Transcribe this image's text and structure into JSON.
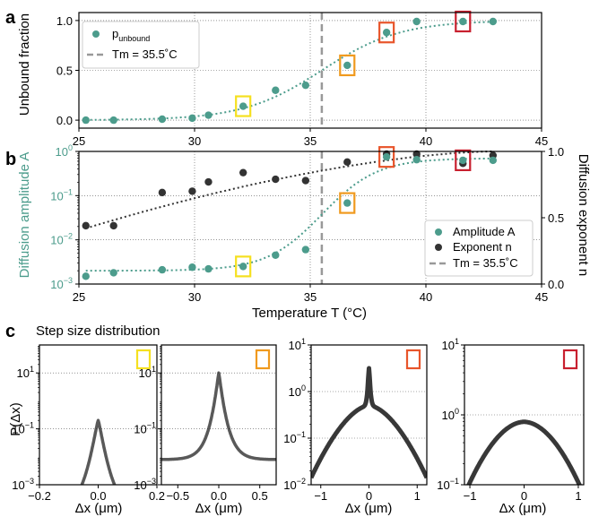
{
  "colors": {
    "teal": "#4c9c8c",
    "black": "#333333",
    "tm_line": "#999999",
    "grid": "#555555",
    "yellow": "#f5e020",
    "orange": "#f09a1e",
    "red_orange": "#e8552b",
    "red": "#c8202f"
  },
  "panel_a": {
    "letter": "a",
    "ylabel": "Unbound fraction",
    "legend": {
      "p_main": "p",
      "p_sub": "unbound",
      "tm_label": "Tm = 35.5˚C"
    }
  },
  "panel_b": {
    "letter": "b",
    "ylabel_left": "Diffusion amplitude A",
    "ylabel_right": "Diffusion exponent n",
    "xlabel": "Temperature T (°C)",
    "legend": {
      "amplitude": "Amplitude A",
      "exponent": "Exponent n",
      "tm_label": "Tm = 35.5˚C"
    }
  },
  "panel_c": {
    "letter": "c",
    "title": "Step size distribution",
    "ylabel": "P(Δx)",
    "xlabel": "Δx (μm)"
  },
  "chart_data": [
    {
      "type": "scatter",
      "panel": "a",
      "ylabel": "Unbound fraction",
      "xlim": [
        25,
        45
      ],
      "ylim": [
        -0.08,
        1.08
      ],
      "xticks": [
        25,
        30,
        35,
        40,
        45
      ],
      "yticks": [
        0.0,
        0.5,
        1.0
      ],
      "ytick_labels": [
        "0.0",
        "0.5",
        "1.0"
      ],
      "grid": true,
      "legend_position": "top-left",
      "series": [
        {
          "name": "p_unbound",
          "x": [
            25.3,
            26.5,
            28.6,
            29.9,
            30.6,
            32.1,
            33.5,
            34.8,
            36.6,
            38.3,
            39.6,
            41.6,
            42.9
          ],
          "y": [
            0.0,
            0.0,
            0.01,
            0.02,
            0.05,
            0.14,
            0.3,
            0.35,
            0.55,
            0.88,
            0.99,
            0.99,
            0.99
          ]
        }
      ],
      "fit": {
        "type": "sigmoid",
        "center": 35.5,
        "width": 1.7
      },
      "tm": 35.5,
      "highlighted": [
        {
          "x": 32.1,
          "color": "yellow"
        },
        {
          "x": 36.6,
          "color": "orange"
        },
        {
          "x": 38.3,
          "color": "red_orange"
        },
        {
          "x": 41.6,
          "color": "red"
        }
      ]
    },
    {
      "type": "scatter",
      "panel": "b",
      "xlabel": "Temperature T (°C)",
      "ylabel": "Diffusion amplitude A",
      "ylabel_right": "Diffusion exponent n",
      "xlim": [
        25,
        45
      ],
      "ylim_log10": [
        -3,
        0
      ],
      "ylim_right": [
        0,
        1
      ],
      "xticks": [
        25,
        30,
        35,
        40,
        45
      ],
      "yticks_right": [
        0.0,
        0.5,
        1.0
      ],
      "ytick_labels_right": [
        "0.0",
        "0.5",
        "1.0"
      ],
      "grid": true,
      "legend_position": "lower-right",
      "series": [
        {
          "name": "Amplitude A",
          "axis": "left",
          "x": [
            25.3,
            26.5,
            28.6,
            29.9,
            30.6,
            32.1,
            33.5,
            34.8,
            36.6,
            38.3,
            39.6,
            41.6,
            42.9
          ],
          "y": [
            0.0015,
            0.0018,
            0.0021,
            0.0024,
            0.0022,
            0.0025,
            0.0045,
            0.006,
            0.068,
            0.75,
            0.65,
            0.63,
            0.63
          ]
        },
        {
          "name": "Exponent n",
          "axis": "right",
          "x": [
            25.3,
            26.5,
            28.6,
            29.9,
            30.6,
            32.1,
            33.5,
            34.8,
            36.6,
            38.3,
            39.6,
            41.6,
            42.9
          ],
          "y": [
            0.44,
            0.44,
            0.69,
            0.7,
            0.77,
            0.84,
            0.79,
            0.78,
            0.92,
            0.98,
            0.98,
            0.91,
            0.97
          ]
        }
      ],
      "fit_amplitude": {
        "type": "sigmoid_log",
        "low": 0.002,
        "high": 0.7,
        "center": 35.5,
        "width": 1.2
      },
      "fit_exponent": {
        "type": "smooth",
        "start": 0.42,
        "end": 1.0
      },
      "tm": 35.5,
      "highlighted": [
        {
          "x": 32.1,
          "color": "yellow"
        },
        {
          "x": 36.6,
          "color": "orange"
        },
        {
          "x": 38.3,
          "color": "red_orange"
        },
        {
          "x": 41.6,
          "color": "red"
        }
      ]
    },
    {
      "type": "line",
      "panel": "c1",
      "marker_color": "yellow",
      "xlim": [
        -0.2,
        0.2
      ],
      "xticks": [
        -0.2,
        0.0,
        0.2
      ],
      "xtick_labels": [
        "−0.2",
        "0.0",
        "0.2"
      ],
      "ylim_log10": [
        -3,
        2
      ],
      "ytick_exponents": [
        -3,
        -1,
        1
      ],
      "shape": {
        "peak_log10": 1.3,
        "edge_log10": -2.0,
        "scale": 0.048
      }
    },
    {
      "type": "line",
      "panel": "c2",
      "marker_color": "orange",
      "xlim": [
        -0.7,
        0.7
      ],
      "xticks": [
        -0.5,
        0.0,
        0.5
      ],
      "xtick_labels": [
        "−0.5",
        "0.0",
        "0.5"
      ],
      "ylim_log10": [
        -3,
        2
      ],
      "ytick_exponents": [
        -3,
        -1,
        1
      ],
      "shape": {
        "peak_log10": 1.0,
        "edge_log10": -2.1,
        "scale": 0.12
      }
    },
    {
      "type": "line",
      "panel": "c3",
      "marker_color": "red_orange",
      "xlim": [
        -1.2,
        1.2
      ],
      "xticks": [
        -1,
        0,
        1
      ],
      "xtick_labels": [
        "−1",
        "0",
        "1"
      ],
      "ylim_log10": [
        -2,
        1
      ],
      "ytick_exponents": [
        -2,
        -1,
        0,
        1
      ],
      "shape": {
        "peak_log10": 0.5,
        "shoulder_log10": -0.3,
        "edge_log10": -1.85
      }
    },
    {
      "type": "line",
      "panel": "c4",
      "marker_color": "red",
      "xlim": [
        -1.1,
        1.1
      ],
      "xticks": [
        -1,
        0,
        1
      ],
      "xtick_labels": [
        "−1",
        "0",
        "1"
      ],
      "ylim_log10": [
        -1,
        1
      ],
      "ytick_exponents": [
        -1,
        0,
        1
      ],
      "shape": {
        "peak_log10": -0.1,
        "edge_log10": -1.0
      }
    }
  ]
}
